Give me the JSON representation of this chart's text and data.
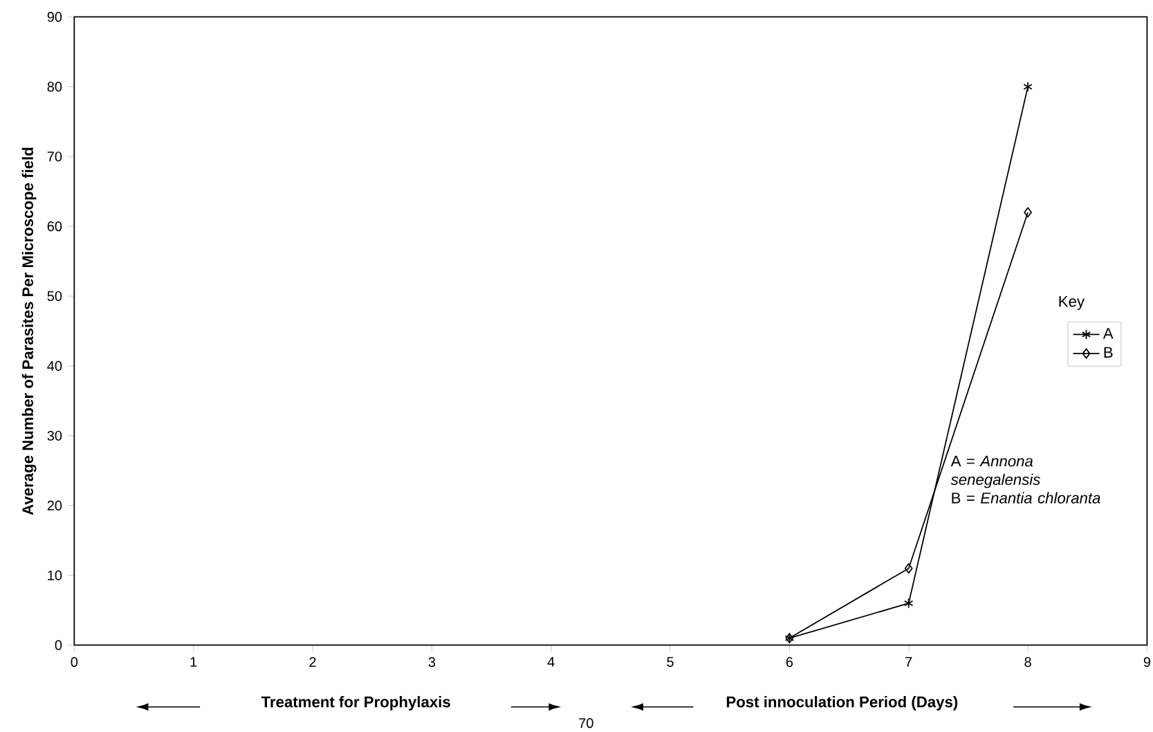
{
  "chart_data": {
    "type": "line",
    "ylabel": "Average Number of Parasites Per Microscope field",
    "legend_title": "Key",
    "xlim": [
      0,
      9
    ],
    "ylim": [
      0,
      90
    ],
    "xticks": [
      0,
      1,
      2,
      3,
      4,
      5,
      6,
      7,
      8,
      9
    ],
    "yticks": [
      0,
      10,
      20,
      30,
      40,
      50,
      60,
      70,
      80,
      90
    ],
    "x": [
      6,
      7,
      8
    ],
    "legend": "right",
    "line_style": "solid",
    "grid": false,
    "series": [
      {
        "name": "A",
        "color": "#000000",
        "marker": "cross",
        "values": [
          1,
          6,
          80
        ]
      },
      {
        "name": "B",
        "color": "#000000",
        "marker": "diamond",
        "values": [
          1,
          11,
          62
        ]
      }
    ],
    "annotations": [
      "A = *Annona senegalensis*",
      "B = *Enantia chloranta*",
      "Treatment for Prophylaxis",
      "Post innoculation Period (Days)",
      "70"
    ]
  }
}
